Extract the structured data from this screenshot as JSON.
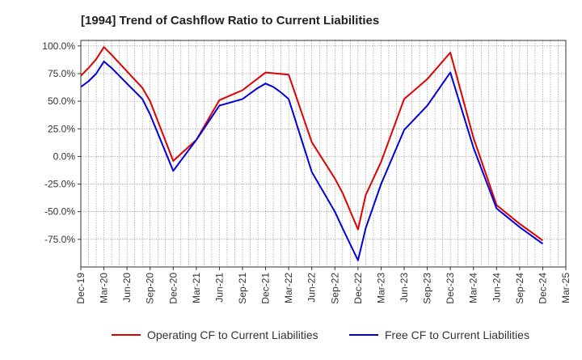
{
  "chart_data": {
    "type": "line",
    "title": "[1994]  Trend of Cashflow Ratio to Current Liabilities",
    "xlabel": "",
    "ylabel": "",
    "ylim": [
      -100,
      105
    ],
    "y_ticks": [
      100,
      75,
      50,
      25,
      0,
      -25,
      -50,
      -75
    ],
    "y_tick_labels": [
      "100.0%",
      "75.0%",
      "50.0%",
      "25.0%",
      "0.0%",
      "-25.0%",
      "-50.0%",
      "-75.0%"
    ],
    "x_tick_labels": [
      "Dec-19",
      "Mar-20",
      "Jun-20",
      "Sep-20",
      "Dec-20",
      "Mar-21",
      "Jun-21",
      "Sep-21",
      "Dec-21",
      "Mar-22",
      "Jun-22",
      "Sep-22",
      "Dec-22",
      "Mar-23",
      "Jun-23",
      "Sep-23",
      "Dec-23",
      "Mar-24",
      "Jun-24",
      "Sep-24",
      "Dec-24",
      "Mar-25"
    ],
    "grid": true,
    "legend_position": "bottom",
    "series": [
      {
        "name": "Operating CF to Current Liabilities",
        "color": "#e00000",
        "points": [
          [
            "Dec-19",
            73
          ],
          [
            "Jan-20",
            80
          ],
          [
            "Feb-20",
            88
          ],
          [
            "Mar-20",
            99
          ],
          [
            "Apr-20",
            92
          ],
          [
            "Jun-20",
            77
          ],
          [
            "Aug-20",
            62
          ],
          [
            "Sep-20",
            50
          ],
          [
            "Dec-20",
            -4
          ],
          [
            "Mar-21",
            15
          ],
          [
            "Jun-21",
            51
          ],
          [
            "Sep-21",
            60
          ],
          [
            "Dec-21",
            76
          ],
          [
            "Mar-22",
            74
          ],
          [
            "Jun-22",
            13
          ],
          [
            "Sep-22",
            -20
          ],
          [
            "Oct-22",
            -33
          ],
          [
            "Dec-22",
            -66
          ],
          [
            "Jan-23",
            -35
          ],
          [
            "Mar-23",
            -5
          ],
          [
            "Jun-23",
            52
          ],
          [
            "Sep-23",
            70
          ],
          [
            "Dec-23",
            94
          ],
          [
            "Mar-24",
            17
          ],
          [
            "Jun-24",
            -44
          ],
          [
            "Sep-24",
            -61
          ],
          [
            "Dec-24",
            -76
          ]
        ]
      },
      {
        "name": "Free CF to Current Liabilities",
        "color": "#0000dd",
        "points": [
          [
            "Dec-19",
            63
          ],
          [
            "Jan-20",
            68
          ],
          [
            "Feb-20",
            75
          ],
          [
            "Mar-20",
            86
          ],
          [
            "Apr-20",
            80
          ],
          [
            "Jun-20",
            66
          ],
          [
            "Aug-20",
            52
          ],
          [
            "Sep-20",
            38
          ],
          [
            "Dec-20",
            -13
          ],
          [
            "Mar-21",
            15
          ],
          [
            "Jun-21",
            46
          ],
          [
            "Sep-21",
            52
          ],
          [
            "Nov-21",
            62
          ],
          [
            "Dec-21",
            66
          ],
          [
            "Jan-22",
            63
          ],
          [
            "Feb-22",
            58
          ],
          [
            "Mar-22",
            52
          ],
          [
            "Jun-22",
            -14
          ],
          [
            "Sep-22",
            -50
          ],
          [
            "Oct-22",
            -65
          ],
          [
            "Dec-22",
            -94
          ],
          [
            "Jan-23",
            -65
          ],
          [
            "Mar-23",
            -25
          ],
          [
            "Jun-23",
            24
          ],
          [
            "Sep-23",
            46
          ],
          [
            "Dec-23",
            76
          ],
          [
            "Mar-24",
            8
          ],
          [
            "Jun-24",
            -47
          ],
          [
            "Sep-24",
            -64
          ],
          [
            "Dec-24",
            -79
          ]
        ]
      }
    ]
  }
}
